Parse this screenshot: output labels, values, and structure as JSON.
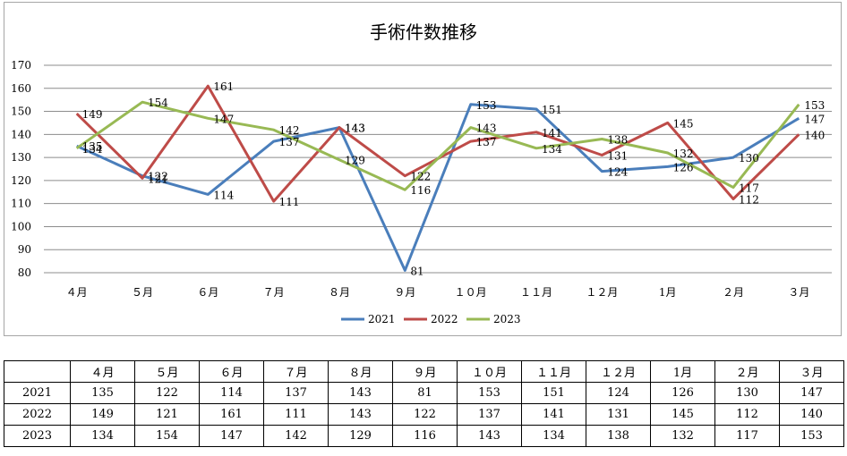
{
  "chart_data": {
    "type": "line",
    "title": "手術件数推移",
    "categories": [
      "４月",
      "５月",
      "６月",
      "７月",
      "８月",
      "９月",
      "１０月",
      "１１月",
      "１２月",
      "1月",
      "２月",
      "３月"
    ],
    "series": [
      {
        "name": "2021",
        "color": "#4a7ebb",
        "values": [
          135,
          122,
          114,
          137,
          143,
          81,
          153,
          151,
          124,
          126,
          130,
          147
        ]
      },
      {
        "name": "2022",
        "color": "#be4b48",
        "values": [
          149,
          121,
          161,
          111,
          143,
          122,
          137,
          141,
          131,
          145,
          112,
          140
        ]
      },
      {
        "name": "2023",
        "color": "#98b954",
        "values": [
          134,
          154,
          147,
          142,
          129,
          116,
          143,
          134,
          138,
          132,
          117,
          153
        ]
      }
    ],
    "ylim": [
      80,
      170
    ],
    "yticks": [
      80,
      90,
      100,
      110,
      120,
      130,
      140,
      150,
      160,
      170
    ],
    "grid": "horizontal",
    "legend": "bottom",
    "data_labels": true
  },
  "table": {
    "headers": [
      "４月",
      "５月",
      "６月",
      "７月",
      "８月",
      "９月",
      "１０月",
      "１１月",
      "１２月",
      "1月",
      "２月",
      "３月"
    ],
    "rows": [
      {
        "label": "2021",
        "values": [
          135,
          122,
          114,
          137,
          143,
          81,
          153,
          151,
          124,
          126,
          130,
          147
        ]
      },
      {
        "label": "2022",
        "values": [
          149,
          121,
          161,
          111,
          143,
          122,
          137,
          141,
          131,
          145,
          112,
          140
        ]
      },
      {
        "label": "2023",
        "values": [
          134,
          154,
          147,
          142,
          129,
          116,
          143,
          134,
          138,
          132,
          117,
          153
        ]
      }
    ]
  }
}
